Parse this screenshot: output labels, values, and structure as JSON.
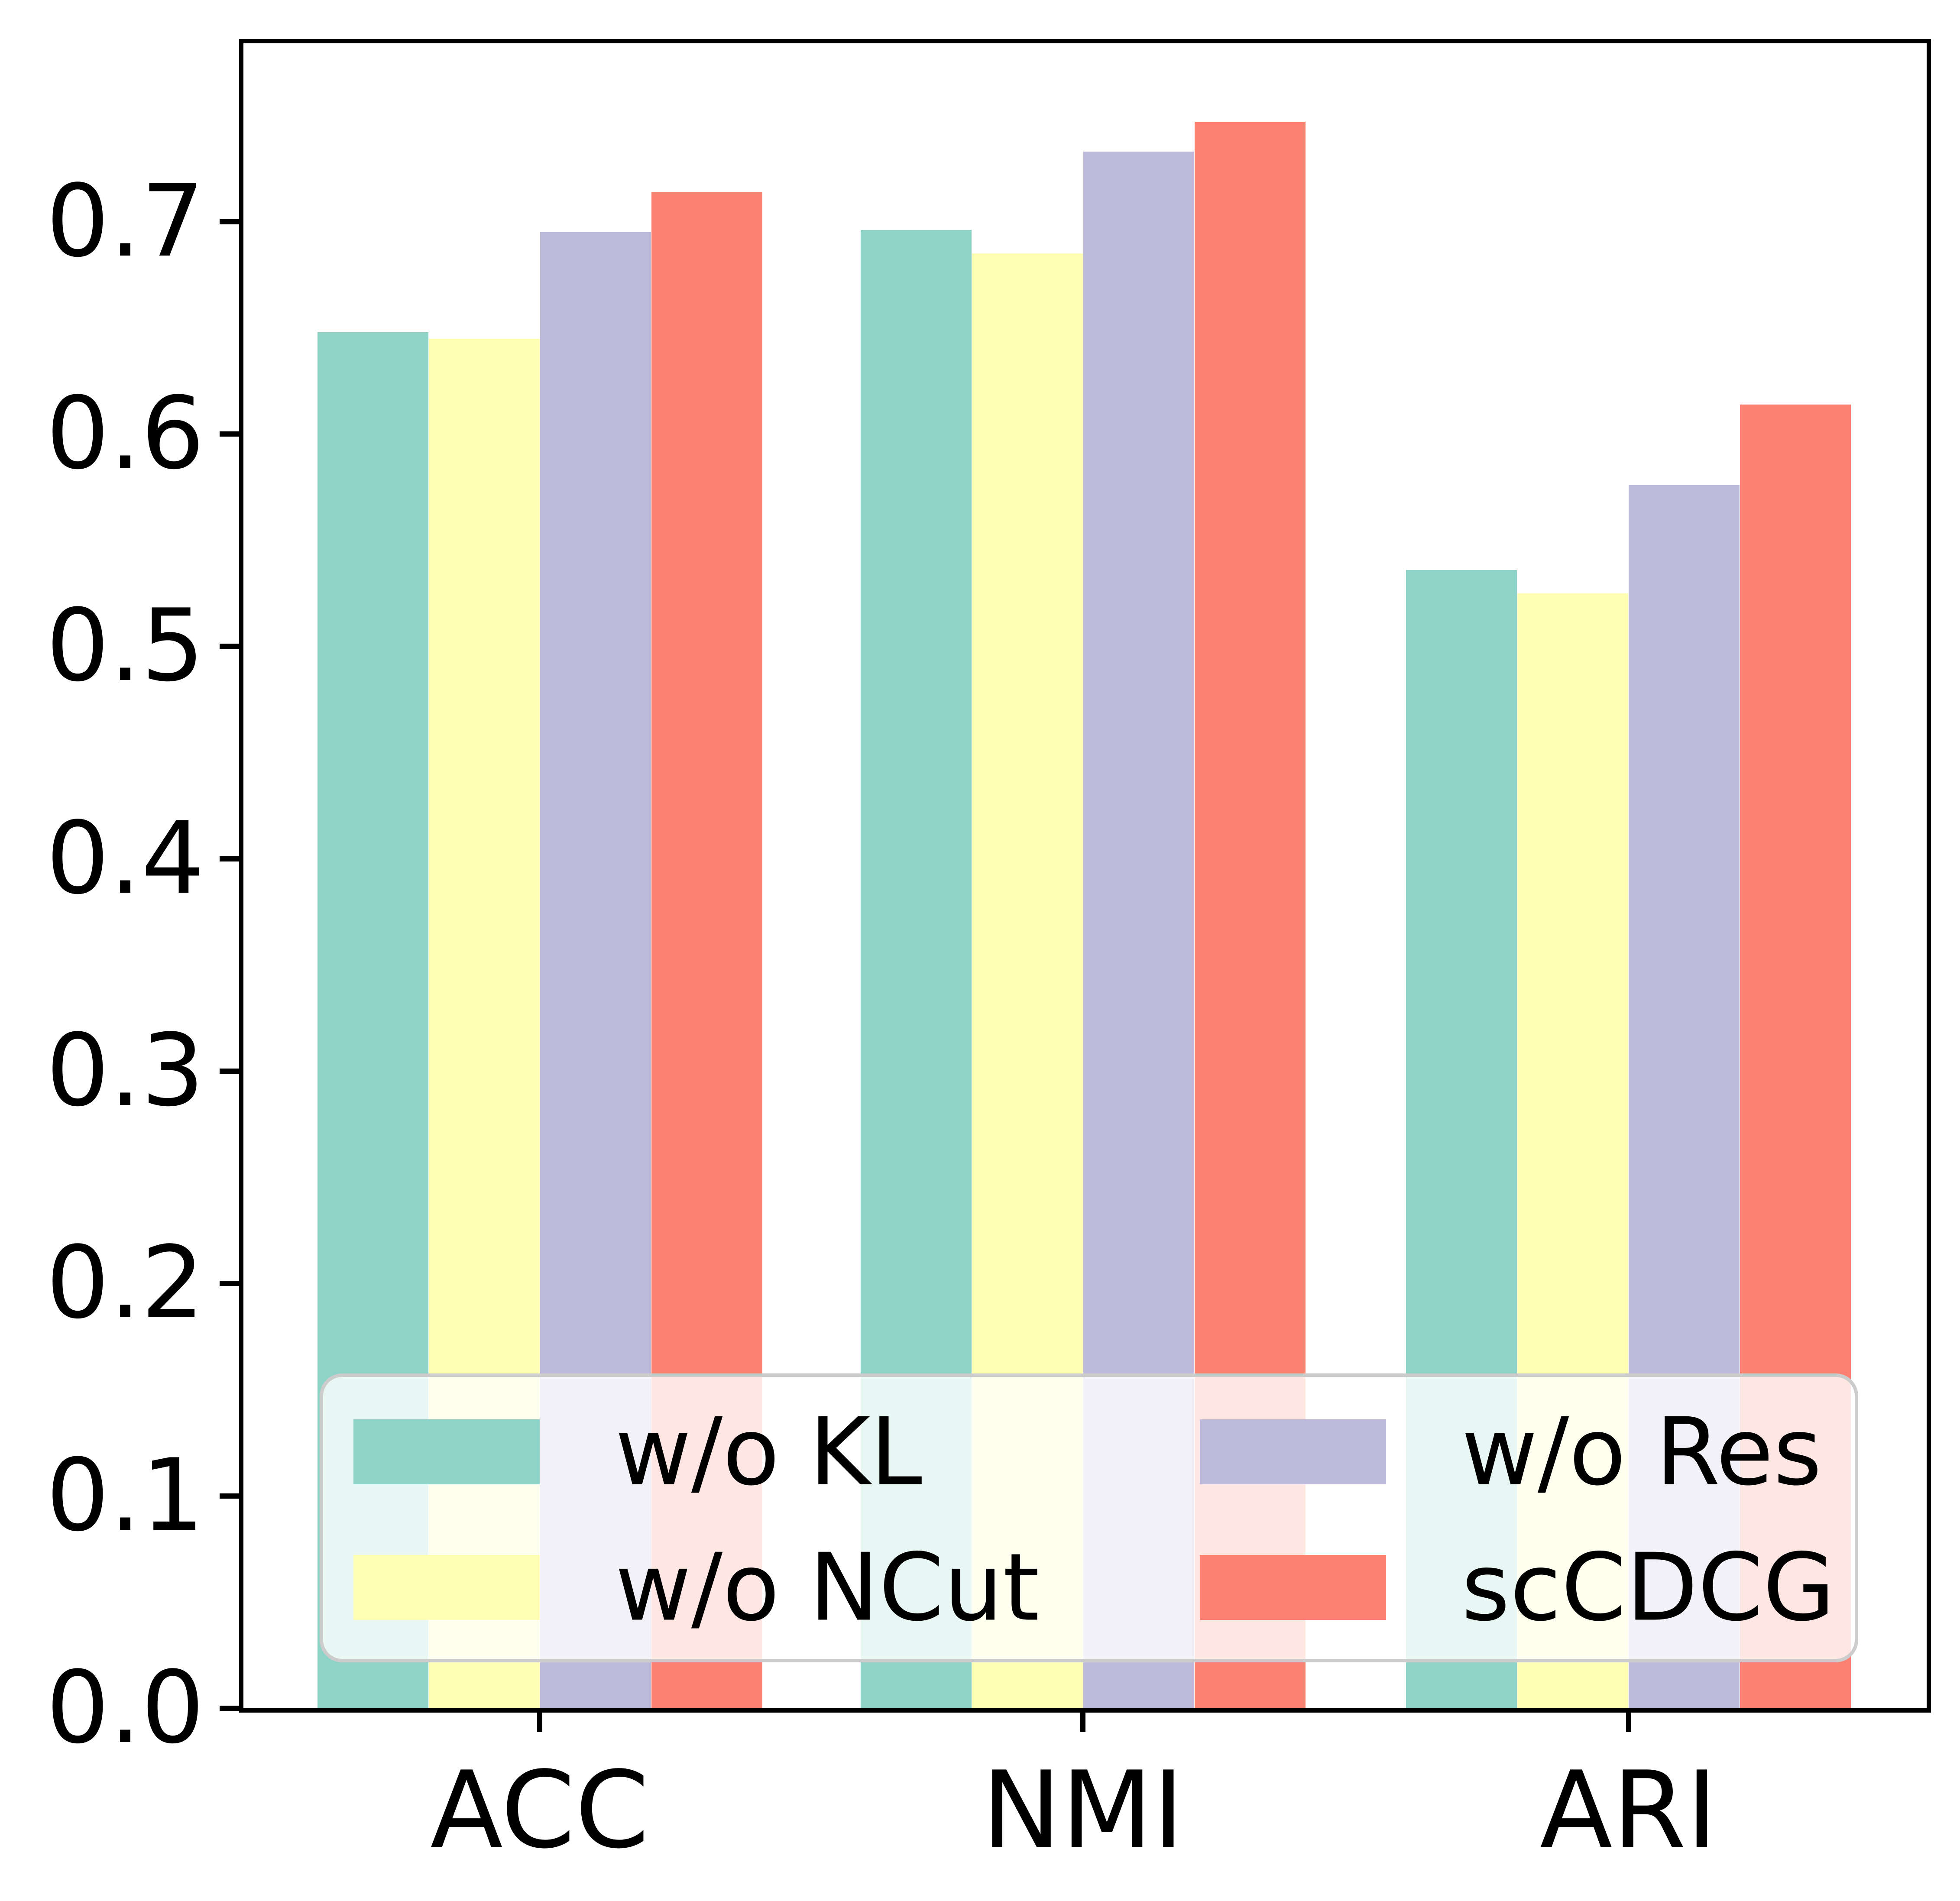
{
  "chart_data": {
    "type": "bar",
    "title": "",
    "xlabel": "",
    "ylabel": "",
    "categories": [
      "ACC",
      "NMI",
      "ARI"
    ],
    "series": [
      {
        "name": "w/o KL",
        "color": "#8dd3c7",
        "values": [
          0.648,
          0.696,
          0.536
        ]
      },
      {
        "name": "w/o NCut",
        "color": "#ffffb3",
        "values": [
          0.645,
          0.685,
          0.525
        ]
      },
      {
        "name": "w/o Res",
        "color": "#bebada",
        "values": [
          0.695,
          0.733,
          0.576
        ]
      },
      {
        "name": "scCDCG",
        "color": "#fb8072",
        "values": [
          0.714,
          0.747,
          0.614
        ]
      }
    ],
    "ylim": [
      0,
      0.784
    ],
    "yticks": [
      "0.0",
      "0.1",
      "0.2",
      "0.3",
      "0.4",
      "0.5",
      "0.6",
      "0.7"
    ],
    "grid": false,
    "legend": {
      "position": "lower center inside axes",
      "columns": 2,
      "entries_column_major": [
        "w/o KL",
        "w/o NCut",
        "w/o Res",
        "scCDCG"
      ],
      "background": "rgba(255,255,255,0.8)",
      "border_color": "#cccccc"
    },
    "frame_color": "#000000",
    "background_color": "#ffffff"
  }
}
